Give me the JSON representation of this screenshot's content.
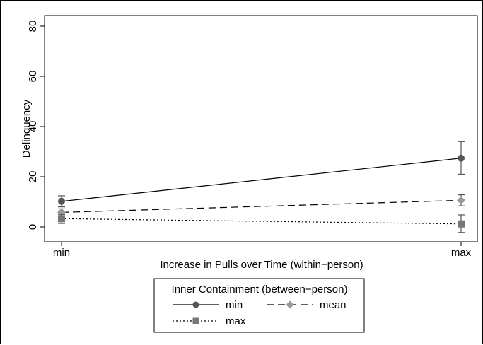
{
  "chart_data": {
    "type": "line",
    "title": "",
    "xlabel": "Increase in Pulls over Time (within−person)",
    "ylabel": "Delinquency",
    "categories": [
      "min",
      "max"
    ],
    "ylim": [
      0,
      80
    ],
    "yticks": [
      "0",
      "20",
      "40",
      "60",
      "80"
    ],
    "grid": false,
    "legend": {
      "title": "Inner Containment (between−person)",
      "placement": "bottom-center"
    },
    "series": [
      {
        "name": "min",
        "values": [
          10.2,
          27.4
        ],
        "ci_low": [
          8.0,
          21.0
        ],
        "ci_high": [
          12.4,
          34.0
        ],
        "marker": "circle",
        "line": "solid",
        "color": "#555555"
      },
      {
        "name": "mean",
        "values": [
          5.8,
          10.6
        ],
        "ci_low": [
          4.4,
          8.4
        ],
        "ci_high": [
          7.2,
          12.8
        ],
        "marker": "diamond",
        "line": "dashed",
        "color": "#999999"
      },
      {
        "name": "max",
        "values": [
          3.3,
          1.2
        ],
        "ci_low": [
          1.4,
          -2.2
        ],
        "ci_high": [
          5.0,
          4.8
        ],
        "marker": "square",
        "line": "dotted",
        "color": "#777777"
      }
    ]
  }
}
